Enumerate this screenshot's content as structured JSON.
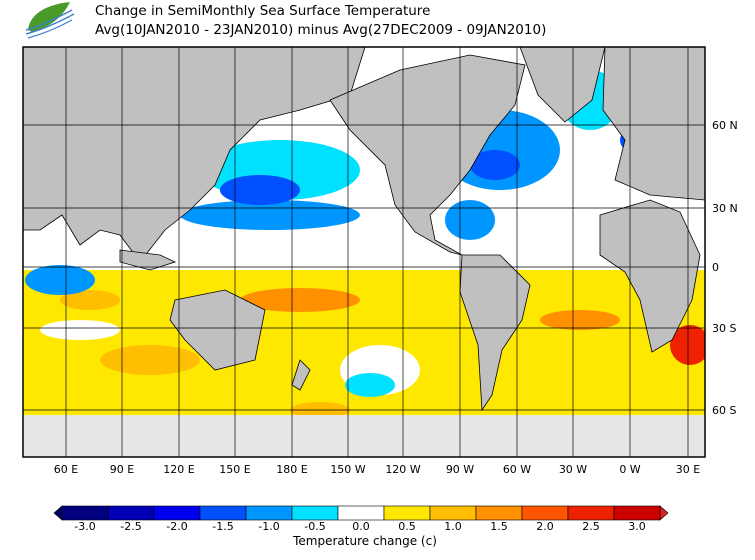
{
  "title": {
    "line1": "Change in SemiMonthly Sea Surface Temperature",
    "line2": "Avg(10JAN2010 - 23JAN2010) minus Avg(27DEC2009 - 09JAN2010)"
  },
  "logo": {
    "icon": "leaf-wave-logo"
  },
  "map": {
    "lat_labels": [
      "60 N",
      "30 N",
      "0",
      "30 S",
      "60 S"
    ],
    "lon_labels": [
      "60 E",
      "90 E",
      "120 E",
      "150 E",
      "180 E",
      "150 W",
      "120 W",
      "90 W",
      "60 W",
      "30 W",
      "0 W",
      "30 E"
    ],
    "land_color": "#c0c0c0"
  },
  "colorbar": {
    "title": "Temperature change  (c)",
    "labels": [
      "-3.0",
      "-2.5",
      "-2.0",
      "-1.5",
      "-1.0",
      "-0.5",
      "0.0",
      "0.5",
      "1.0",
      "1.5",
      "2.0",
      "2.5",
      "3.0"
    ],
    "colors": [
      "#000080",
      "#0000b4",
      "#0000f0",
      "#0050ff",
      "#0096ff",
      "#00e0ff",
      "#ffffff",
      "#ffe800",
      "#ffbe00",
      "#ff9000",
      "#ff5500",
      "#ee2200",
      "#cc0000"
    ],
    "under_color": "#000060",
    "over_color": "#dd2222"
  }
}
